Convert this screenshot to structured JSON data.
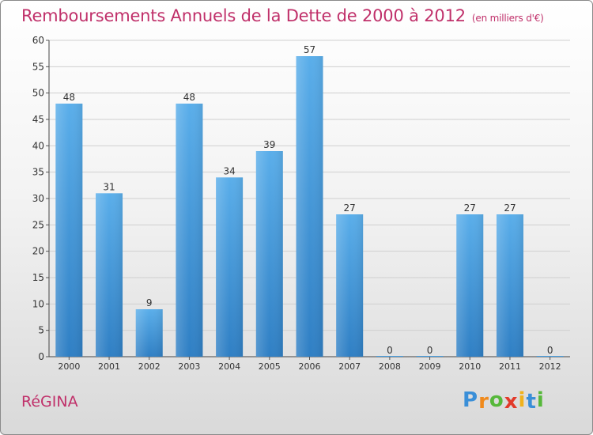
{
  "title": "Remboursements Annuels de la Dette de 2000 à 2012",
  "unit": "(en milliers d'€)",
  "city": "RéGINA",
  "logo": {
    "letters": [
      "P",
      "r",
      "o",
      "x",
      "i",
      "t",
      "i"
    ],
    "colors": [
      "#3a8fd8",
      "#f08a1c",
      "#56b83a",
      "#e23a2a",
      "#f0b21c",
      "#3a8fd8",
      "#56b83a"
    ]
  },
  "chart_data": {
    "type": "bar",
    "categories": [
      "2000",
      "2001",
      "2002",
      "2003",
      "2004",
      "2005",
      "2006",
      "2007",
      "2008",
      "2009",
      "2010",
      "2011",
      "2012"
    ],
    "values": [
      48,
      31,
      9,
      48,
      34,
      39,
      57,
      27,
      0,
      0,
      27,
      27,
      0
    ],
    "ylim": [
      0,
      60
    ],
    "yticks": [
      0,
      5,
      10,
      15,
      20,
      25,
      30,
      35,
      40,
      45,
      50,
      55,
      60
    ],
    "grid": true,
    "bar_color": "#4a9fe0"
  }
}
